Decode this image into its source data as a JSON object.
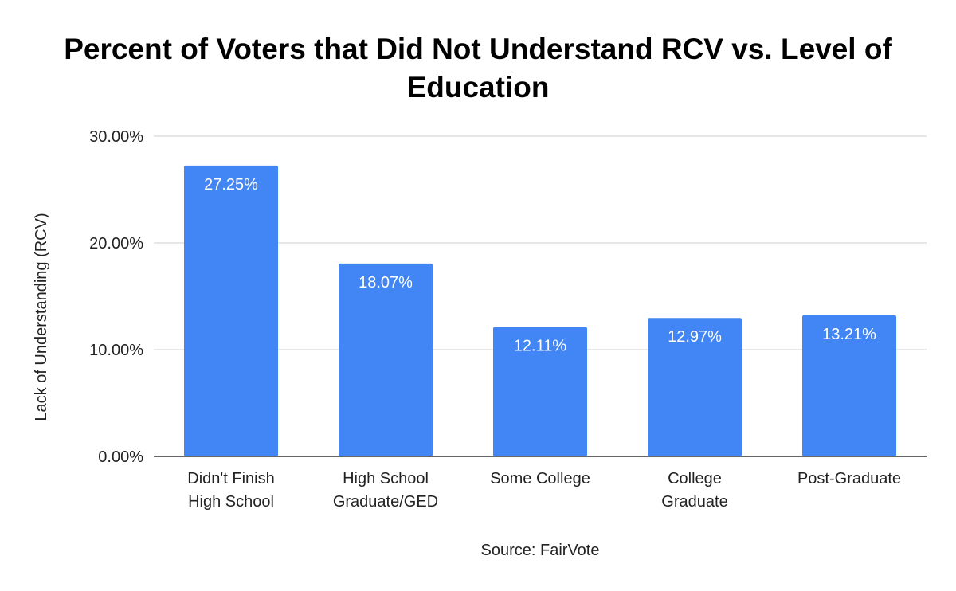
{
  "chart_data": {
    "type": "bar",
    "title": "Percent of Voters that Did Not Understand RCV vs. Level of Education",
    "xlabel": "Source: FairVote",
    "ylabel": "Lack of Understanding (RCV)",
    "ylim": [
      0,
      30
    ],
    "yticks": [
      0,
      10,
      20,
      30
    ],
    "ytick_labels": [
      "0.00%",
      "10.00%",
      "20.00%",
      "30.00%"
    ],
    "grid": true,
    "bar_color": "#4285f4",
    "categories": [
      [
        "Didn't Finish",
        "High School"
      ],
      [
        "High School",
        "Graduate/GED"
      ],
      [
        "Some College"
      ],
      [
        "College",
        "Graduate"
      ],
      [
        "Post-Graduate"
      ]
    ],
    "values": [
      27.25,
      18.07,
      12.11,
      12.97,
      13.21
    ],
    "data_labels": [
      "27.25%",
      "18.07%",
      "12.11%",
      "12.97%",
      "13.21%"
    ]
  }
}
